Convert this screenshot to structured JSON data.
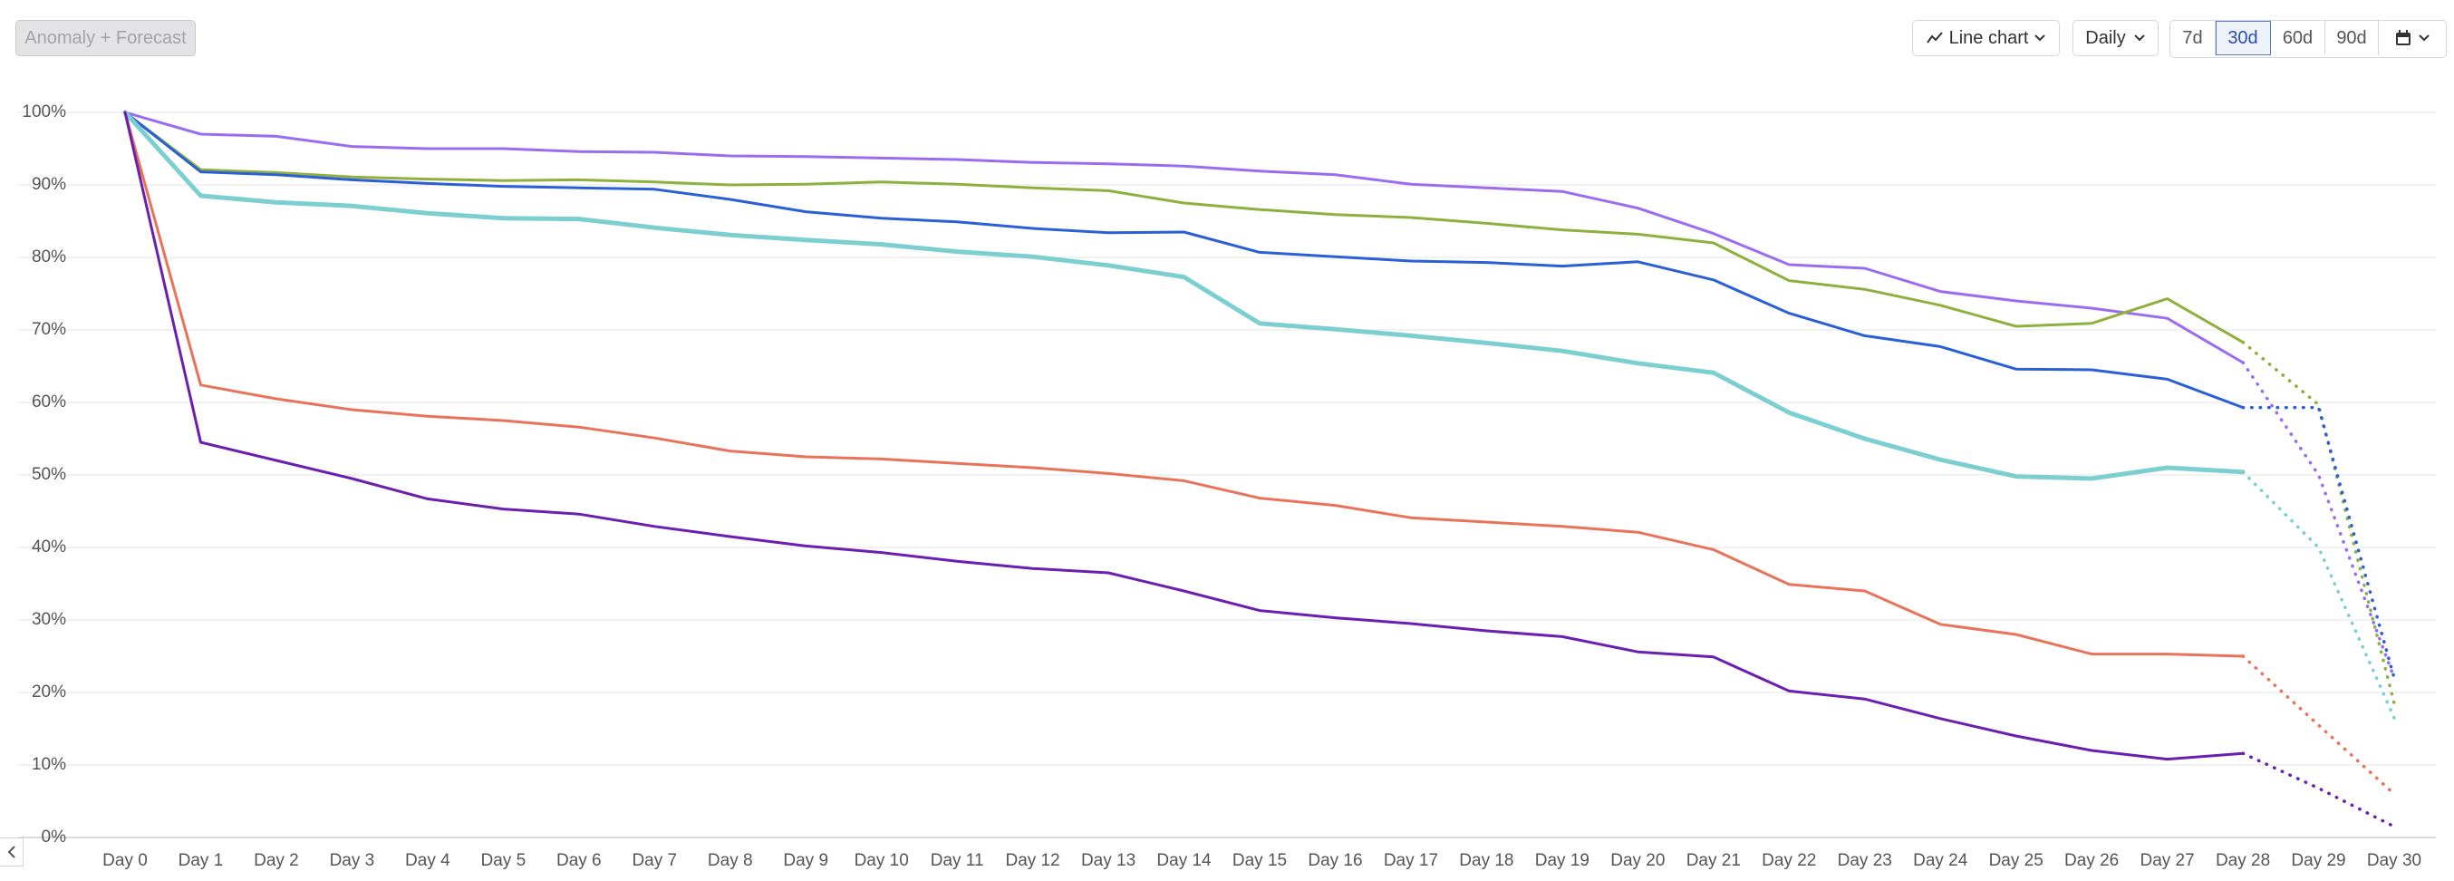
{
  "toolbar": {
    "anomaly_button": "Anomaly + Forecast",
    "chart_type": "Line chart",
    "interval": "Daily",
    "ranges": [
      "7d",
      "30d",
      "60d",
      "90d"
    ],
    "selected_range": "30d"
  },
  "chart_data": {
    "type": "line",
    "grid": true,
    "categories": [
      "Day 0",
      "Day 1",
      "Day 2",
      "Day 3",
      "Day 4",
      "Day 5",
      "Day 6",
      "Day 7",
      "Day 8",
      "Day 9",
      "Day 10",
      "Day 11",
      "Day 12",
      "Day 13",
      "Day 14",
      "Day 15",
      "Day 16",
      "Day 17",
      "Day 18",
      "Day 19",
      "Day 20",
      "Day 21",
      "Day 22",
      "Day 23",
      "Day 24",
      "Day 25",
      "Day 26",
      "Day 27",
      "Day 28",
      "Day 29",
      "Day 30"
    ],
    "ylim": [
      0,
      100
    ],
    "yticks": [
      {
        "value": 0,
        "label": "0%"
      },
      {
        "value": 10,
        "label": "10%"
      },
      {
        "value": 20,
        "label": "20%"
      },
      {
        "value": 30,
        "label": "30%"
      },
      {
        "value": 40,
        "label": "40%"
      },
      {
        "value": 50,
        "label": "50%"
      },
      {
        "value": 60,
        "label": "60%"
      },
      {
        "value": 70,
        "label": "70%"
      },
      {
        "value": 80,
        "label": "80%"
      },
      {
        "value": 90,
        "label": "90%"
      },
      {
        "value": 100,
        "label": "100%"
      }
    ],
    "series": [
      {
        "color": "#9b6cf0",
        "width": 3,
        "values": [
          100,
          97,
          96.7,
          95.3,
          95,
          95,
          94.6,
          94.5,
          94,
          93.9,
          93.7,
          93.5,
          93.1,
          92.9,
          92.6,
          91.9,
          91.4,
          90.1,
          89.6,
          89.1,
          86.8,
          83.3,
          79,
          78.5,
          75.3,
          74,
          73,
          71.6,
          65.5,
          null,
          null
        ],
        "forecast": [
          null,
          null,
          null,
          null,
          null,
          null,
          null,
          null,
          null,
          null,
          null,
          null,
          null,
          null,
          null,
          null,
          null,
          null,
          null,
          null,
          null,
          null,
          null,
          null,
          null,
          null,
          null,
          null,
          65.5,
          50,
          22
        ]
      },
      {
        "color": "#8fb03e",
        "width": 3,
        "values": [
          100,
          92.1,
          91.7,
          91.1,
          90.8,
          90.6,
          90.7,
          90.4,
          90,
          90.1,
          90.4,
          90.1,
          89.6,
          89.2,
          87.5,
          86.6,
          85.9,
          85.5,
          84.7,
          83.8,
          83.2,
          82,
          76.8,
          75.6,
          73.4,
          70.5,
          70.9,
          74.3,
          68.3,
          null,
          null
        ],
        "forecast": [
          null,
          null,
          null,
          null,
          null,
          null,
          null,
          null,
          null,
          null,
          null,
          null,
          null,
          null,
          null,
          null,
          null,
          null,
          null,
          null,
          null,
          null,
          null,
          null,
          null,
          null,
          null,
          null,
          68.3,
          59.7,
          18.5
        ]
      },
      {
        "color": "#2a5fd8",
        "width": 3,
        "values": [
          100,
          91.8,
          91.4,
          90.7,
          90.2,
          89.8,
          89.6,
          89.4,
          88,
          86.3,
          85.4,
          84.9,
          84,
          83.4,
          83.5,
          80.7,
          80.1,
          79.5,
          79.3,
          78.8,
          79.4,
          76.9,
          72.3,
          69.2,
          67.7,
          64.6,
          64.5,
          63.2,
          59.3,
          null,
          null
        ],
        "forecast": [
          null,
          null,
          null,
          null,
          null,
          null,
          null,
          null,
          null,
          null,
          null,
          null,
          null,
          null,
          null,
          null,
          null,
          null,
          null,
          null,
          null,
          null,
          null,
          null,
          null,
          null,
          null,
          null,
          59.3,
          59.3,
          22
        ]
      },
      {
        "color": "#7ccfd0",
        "width": 5,
        "values": [
          100,
          88.5,
          87.6,
          87.1,
          86.1,
          85.4,
          85.3,
          84.1,
          83.1,
          82.4,
          81.8,
          80.8,
          80.1,
          78.9,
          77.3,
          70.9,
          70.1,
          69.2,
          68.2,
          67.1,
          65.4,
          64.1,
          58.6,
          55,
          52.1,
          49.8,
          49.5,
          51,
          50.4,
          null,
          null
        ],
        "forecast": [
          null,
          null,
          null,
          null,
          null,
          null,
          null,
          null,
          null,
          null,
          null,
          null,
          null,
          null,
          null,
          null,
          null,
          null,
          null,
          null,
          null,
          null,
          null,
          null,
          null,
          null,
          null,
          null,
          50.4,
          40,
          16.5
        ]
      },
      {
        "color": "#e8735a",
        "width": 3,
        "values": [
          100,
          62.4,
          60.5,
          59,
          58.1,
          57.5,
          56.6,
          55.1,
          53.3,
          52.5,
          52.2,
          51.6,
          51,
          50.2,
          49.2,
          46.8,
          45.8,
          44.1,
          43.5,
          42.9,
          42.1,
          39.7,
          34.9,
          34,
          29.4,
          28,
          25.3,
          25.3,
          25,
          null,
          null
        ],
        "forecast": [
          null,
          null,
          null,
          null,
          null,
          null,
          null,
          null,
          null,
          null,
          null,
          null,
          null,
          null,
          null,
          null,
          null,
          null,
          null,
          null,
          null,
          null,
          null,
          null,
          null,
          null,
          null,
          null,
          25,
          15.5,
          6
        ]
      },
      {
        "color": "#6a1fb0",
        "width": 3,
        "values": [
          100,
          54.5,
          52,
          49.5,
          46.7,
          45.3,
          44.6,
          42.9,
          41.5,
          40.2,
          39.3,
          38.1,
          37.1,
          36.5,
          34,
          31.3,
          30.3,
          29.5,
          28.5,
          27.7,
          25.6,
          24.9,
          20.2,
          19.1,
          16.4,
          14,
          12,
          10.8,
          11.6,
          null,
          null
        ],
        "forecast": [
          null,
          null,
          null,
          null,
          null,
          null,
          null,
          null,
          null,
          null,
          null,
          null,
          null,
          null,
          null,
          null,
          null,
          null,
          null,
          null,
          null,
          null,
          null,
          null,
          null,
          null,
          null,
          null,
          11.6,
          6.8,
          1.5
        ]
      }
    ]
  }
}
